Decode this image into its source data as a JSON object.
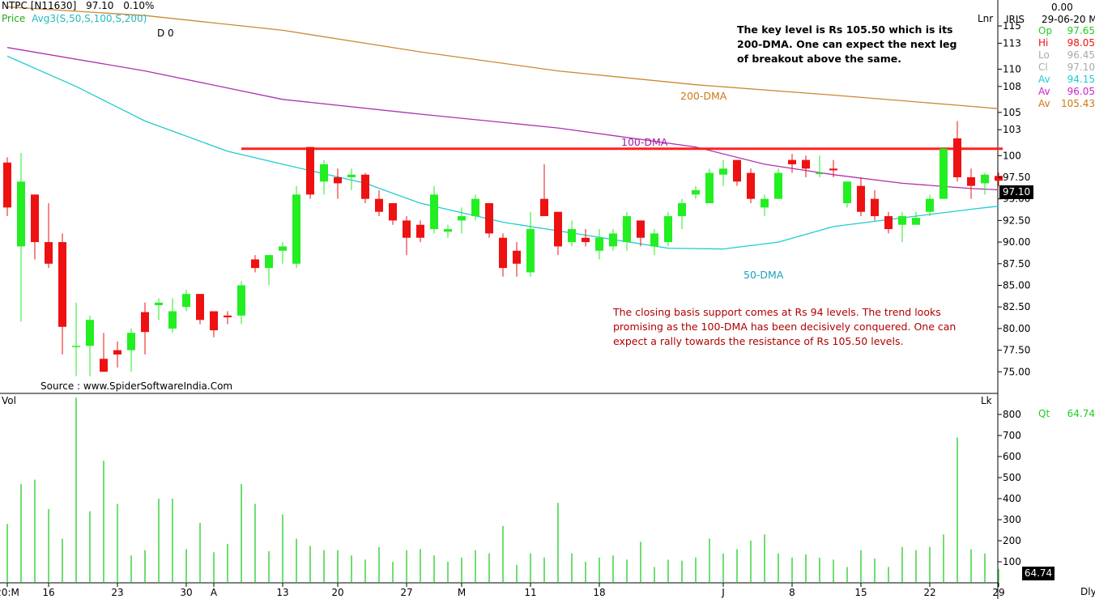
{
  "header": {
    "symbol": "NTPC [N11630]",
    "last": "97.10",
    "change": "0.10%",
    "price_label": "Price",
    "avg_label": "Avg3(S,50,S,100,S,200)",
    "d0_label": "D 0",
    "scale_type": "Lnr",
    "vol_label": "Vol",
    "vol_scale": "Lk",
    "period": "Dly"
  },
  "info_panel": {
    "title": "IRIS",
    "top_value": "0.00",
    "date": "29-06-20 Mo",
    "rows": [
      {
        "label": "Op",
        "value": "97.65",
        "color": "#22cc22"
      },
      {
        "label": "Hi",
        "value": "98.05",
        "color": "#ee1111"
      },
      {
        "label": "Lo",
        "value": "96.45",
        "color": "#aaaaaa"
      },
      {
        "label": "Cl",
        "value": "97.10",
        "color": "#aaaaaa"
      },
      {
        "label": "Av",
        "value": "94.15",
        "color": "#22cccc"
      },
      {
        "label": "Av",
        "value": "96.05",
        "color": "#cc22cc"
      },
      {
        "label": "Av",
        "value": "105.43",
        "color": "#cc7711"
      }
    ],
    "qt_label": "Qt",
    "qt_value": "64.74"
  },
  "annotations": {
    "key_level": "The key level is Rs 105.50 which is its 200-DMA. One can expect the next leg of breakout above the same.",
    "support": "The closing basis support comes at Rs 94 levels. The trend looks promising as the 100-DMA has been decisively conquered. One can expect a rally towards the resistance of Rs 105.50 levels.",
    "source": "Source : www.SpiderSoftwareIndia.Com",
    "dma200": "200-DMA",
    "dma100": "100-DMA",
    "dma50": "50-DMA"
  },
  "price_tag": "97.10",
  "vol_tag": "64.74",
  "chart_data": {
    "type": "candlestick",
    "ylim": [
      72.5,
      118
    ],
    "yticks": [
      75.0,
      77.5,
      80.0,
      82.5,
      85.0,
      87.5,
      90.0,
      92.5,
      95.0,
      97.5,
      100,
      103,
      105,
      108,
      110,
      113,
      115
    ],
    "x_labels": [
      {
        "label": "20:M",
        "i": 0
      },
      {
        "label": "16",
        "i": 3
      },
      {
        "label": "23",
        "i": 8
      },
      {
        "label": "30",
        "i": 13
      },
      {
        "label": "A",
        "i": 15
      },
      {
        "label": "13",
        "i": 20
      },
      {
        "label": "20",
        "i": 24
      },
      {
        "label": "27",
        "i": 29
      },
      {
        "label": "M",
        "i": 33
      },
      {
        "label": "11",
        "i": 38
      },
      {
        "label": "18",
        "i": 43
      },
      {
        "label": "J",
        "i": 52
      },
      {
        "label": "8",
        "i": 57
      },
      {
        "label": "15",
        "i": 62
      },
      {
        "label": "22",
        "i": 67
      },
      {
        "label": "29",
        "i": 72
      }
    ],
    "candles": [
      {
        "o": 99.2,
        "h": 99.8,
        "l": 93.0,
        "c": 94.0,
        "v": 280
      },
      {
        "o": 89.5,
        "h": 100.3,
        "l": 80.8,
        "c": 97.0,
        "v": 470
      },
      {
        "o": 95.5,
        "h": 95.5,
        "l": 88.0,
        "c": 90.0,
        "v": 490
      },
      {
        "o": 90.0,
        "h": 94.5,
        "l": 87.0,
        "c": 87.5,
        "v": 350
      },
      {
        "o": 90.0,
        "h": 91.0,
        "l": 77.0,
        "c": 80.2,
        "v": 210
      },
      {
        "o": 78.0,
        "h": 83.0,
        "l": 74.5,
        "c": 78.0,
        "v": 880
      },
      {
        "o": 78.0,
        "h": 81.5,
        "l": 74.5,
        "c": 81.0,
        "v": 340
      },
      {
        "o": 76.5,
        "h": 79.5,
        "l": 75.0,
        "c": 75.0,
        "v": 580
      },
      {
        "o": 77.5,
        "h": 78.5,
        "l": 75.5,
        "c": 77.0,
        "v": 375
      },
      {
        "o": 77.5,
        "h": 80.0,
        "l": 75.0,
        "c": 79.5,
        "v": 130
      },
      {
        "o": 81.9,
        "h": 83.0,
        "l": 77.0,
        "c": 79.6,
        "v": 155
      },
      {
        "o": 82.7,
        "h": 83.5,
        "l": 81.0,
        "c": 83.0,
        "v": 400
      },
      {
        "o": 80.0,
        "h": 83.5,
        "l": 79.5,
        "c": 82.0,
        "v": 400
      },
      {
        "o": 82.5,
        "h": 84.5,
        "l": 82.0,
        "c": 84.0,
        "v": 160
      },
      {
        "o": 84.0,
        "h": 84.0,
        "l": 80.5,
        "c": 81.0,
        "v": 285
      },
      {
        "o": 82.0,
        "h": 82.0,
        "l": 79.0,
        "c": 79.8,
        "v": 145
      },
      {
        "o": 81.5,
        "h": 82.0,
        "l": 80.5,
        "c": 81.3,
        "v": 185
      },
      {
        "o": 81.5,
        "h": 85.5,
        "l": 80.5,
        "c": 85.0,
        "v": 470
      },
      {
        "o": 88.0,
        "h": 88.5,
        "l": 86.5,
        "c": 87.0,
        "v": 375
      },
      {
        "o": 87.0,
        "h": 88.5,
        "l": 85.0,
        "c": 88.5,
        "v": 150
      },
      {
        "o": 89.0,
        "h": 90.0,
        "l": 87.5,
        "c": 89.5,
        "v": 325
      },
      {
        "o": 87.5,
        "h": 96.5,
        "l": 87.0,
        "c": 95.5,
        "v": 210
      },
      {
        "o": 101.0,
        "h": 101.0,
        "l": 95.0,
        "c": 95.5,
        "v": 175
      },
      {
        "o": 97.0,
        "h": 99.5,
        "l": 95.5,
        "c": 99.0,
        "v": 155
      },
      {
        "o": 97.5,
        "h": 98.5,
        "l": 95.0,
        "c": 96.8,
        "v": 155
      },
      {
        "o": 97.5,
        "h": 98.5,
        "l": 96.0,
        "c": 97.8,
        "v": 130
      },
      {
        "o": 97.8,
        "h": 98.0,
        "l": 94.5,
        "c": 95.0,
        "v": 110
      },
      {
        "o": 95.0,
        "h": 96.0,
        "l": 93.0,
        "c": 93.5,
        "v": 170
      },
      {
        "o": 94.5,
        "h": 94.5,
        "l": 92.0,
        "c": 92.5,
        "v": 100
      },
      {
        "o": 92.5,
        "h": 93.0,
        "l": 88.5,
        "c": 90.5,
        "v": 155
      },
      {
        "o": 92.0,
        "h": 92.5,
        "l": 90.0,
        "c": 90.5,
        "v": 160
      },
      {
        "o": 91.5,
        "h": 96.5,
        "l": 91.0,
        "c": 95.5,
        "v": 130
      },
      {
        "o": 91.2,
        "h": 92.0,
        "l": 90.5,
        "c": 91.5,
        "v": 100
      },
      {
        "o": 92.5,
        "h": 94.0,
        "l": 91.0,
        "c": 93.0,
        "v": 120
      },
      {
        "o": 93.0,
        "h": 95.5,
        "l": 92.5,
        "c": 95.0,
        "v": 155
      },
      {
        "o": 94.5,
        "h": 94.5,
        "l": 90.5,
        "c": 91.0,
        "v": 140
      },
      {
        "o": 90.5,
        "h": 91.0,
        "l": 86.0,
        "c": 87.0,
        "v": 270
      },
      {
        "o": 89.0,
        "h": 90.0,
        "l": 86.0,
        "c": 87.5,
        "v": 85
      },
      {
        "o": 86.5,
        "h": 93.5,
        "l": 86.0,
        "c": 91.5,
        "v": 140
      },
      {
        "o": 95.0,
        "h": 99.0,
        "l": 93.0,
        "c": 93.0,
        "v": 120
      },
      {
        "o": 93.5,
        "h": 93.5,
        "l": 88.5,
        "c": 89.5,
        "v": 380
      },
      {
        "o": 90.0,
        "h": 92.5,
        "l": 89.5,
        "c": 91.5,
        "v": 140
      },
      {
        "o": 90.5,
        "h": 91.5,
        "l": 89.5,
        "c": 90.0,
        "v": 100
      },
      {
        "o": 89.0,
        "h": 91.5,
        "l": 88.0,
        "c": 90.5,
        "v": 120
      },
      {
        "o": 89.5,
        "h": 91.5,
        "l": 89.0,
        "c": 91.0,
        "v": 130
      },
      {
        "o": 90.0,
        "h": 93.5,
        "l": 89.0,
        "c": 93.0,
        "v": 110
      },
      {
        "o": 92.5,
        "h": 92.5,
        "l": 89.5,
        "c": 90.5,
        "v": 195
      },
      {
        "o": 89.5,
        "h": 91.5,
        "l": 88.5,
        "c": 91.0,
        "v": 75
      },
      {
        "o": 90.0,
        "h": 93.5,
        "l": 89.5,
        "c": 93.0,
        "v": 110
      },
      {
        "o": 93.0,
        "h": 95.0,
        "l": 91.5,
        "c": 94.5,
        "v": 105
      },
      {
        "o": 95.5,
        "h": 96.5,
        "l": 95.0,
        "c": 96.0,
        "v": 120
      },
      {
        "o": 94.5,
        "h": 98.5,
        "l": 94.5,
        "c": 98.0,
        "v": 210
      },
      {
        "o": 97.8,
        "h": 99.5,
        "l": 96.5,
        "c": 98.5,
        "v": 140
      },
      {
        "o": 99.5,
        "h": 99.5,
        "l": 96.5,
        "c": 97.0,
        "v": 160
      },
      {
        "o": 98.0,
        "h": 98.5,
        "l": 94.5,
        "c": 95.0,
        "v": 200
      },
      {
        "o": 94.0,
        "h": 95.5,
        "l": 93.0,
        "c": 95.0,
        "v": 230
      },
      {
        "o": 95.0,
        "h": 98.5,
        "l": 95.0,
        "c": 98.0,
        "v": 140
      },
      {
        "o": 99.5,
        "h": 100.2,
        "l": 98.0,
        "c": 99.0,
        "v": 120
      },
      {
        "o": 99.5,
        "h": 100.0,
        "l": 97.5,
        "c": 98.5,
        "v": 135
      },
      {
        "o": 98.0,
        "h": 100.0,
        "l": 97.5,
        "c": 98.0,
        "v": 120
      },
      {
        "o": 98.5,
        "h": 99.5,
        "l": 97.5,
        "c": 98.3,
        "v": 110
      },
      {
        "o": 94.5,
        "h": 97.0,
        "l": 94.0,
        "c": 97.0,
        "v": 75
      },
      {
        "o": 96.5,
        "h": 97.5,
        "l": 93.0,
        "c": 93.5,
        "v": 155
      },
      {
        "o": 95.0,
        "h": 96.0,
        "l": 92.5,
        "c": 93.0,
        "v": 115
      },
      {
        "o": 93.0,
        "h": 93.5,
        "l": 91.0,
        "c": 91.5,
        "v": 75
      },
      {
        "o": 92.0,
        "h": 93.5,
        "l": 90.0,
        "c": 93.0,
        "v": 170
      },
      {
        "o": 92.0,
        "h": 93.5,
        "l": 92.0,
        "c": 92.8,
        "v": 155
      },
      {
        "o": 93.5,
        "h": 95.5,
        "l": 93.0,
        "c": 95.0,
        "v": 170
      },
      {
        "o": 95.0,
        "h": 101.0,
        "l": 95.0,
        "c": 100.8,
        "v": 230
      },
      {
        "o": 102.0,
        "h": 104.0,
        "l": 97.0,
        "c": 97.5,
        "v": 690
      },
      {
        "o": 97.5,
        "h": 98.5,
        "l": 95.0,
        "c": 96.5,
        "v": 160
      },
      {
        "o": 96.8,
        "h": 98.0,
        "l": 95.5,
        "c": 97.8,
        "v": 140
      },
      {
        "o": 97.65,
        "h": 98.05,
        "l": 96.45,
        "c": 97.1,
        "v": 65
      }
    ],
    "series": [
      {
        "name": "200-DMA",
        "color": "#cc8833",
        "points": [
          [
            0,
            117.2
          ],
          [
            10,
            116.2
          ],
          [
            20,
            114.5
          ],
          [
            30,
            112.0
          ],
          [
            40,
            109.8
          ],
          [
            50,
            108.2
          ],
          [
            60,
            107.0
          ],
          [
            70,
            105.7
          ],
          [
            72,
            105.43
          ]
        ]
      },
      {
        "name": "100-DMA",
        "color": "#b030b0",
        "points": [
          [
            0,
            112.5
          ],
          [
            10,
            109.8
          ],
          [
            20,
            106.5
          ],
          [
            30,
            104.8
          ],
          [
            40,
            103.2
          ],
          [
            50,
            101.0
          ],
          [
            55,
            99.0
          ],
          [
            60,
            97.8
          ],
          [
            65,
            96.8
          ],
          [
            70,
            96.2
          ],
          [
            72,
            96.05
          ]
        ]
      },
      {
        "name": "50-DMA",
        "color": "#22cccc",
        "points": [
          [
            0,
            111.5
          ],
          [
            5,
            108.0
          ],
          [
            10,
            104.0
          ],
          [
            16,
            100.5
          ],
          [
            20,
            99.0
          ],
          [
            26,
            96.8
          ],
          [
            30,
            94.5
          ],
          [
            36,
            92.3
          ],
          [
            42,
            90.8
          ],
          [
            48,
            89.3
          ],
          [
            52,
            89.2
          ],
          [
            56,
            90.0
          ],
          [
            60,
            91.8
          ],
          [
            66,
            93.0
          ],
          [
            70,
            93.8
          ],
          [
            72,
            94.15
          ]
        ]
      }
    ],
    "resistance": {
      "value": 100.8,
      "from_i": 17,
      "to_i": 72,
      "color": "#ff2020"
    },
    "volume": {
      "ylim": [
        0,
        900
      ],
      "yticks": [
        100,
        200,
        300,
        400,
        500,
        600,
        700,
        800
      ],
      "color": "#22cc22"
    }
  }
}
